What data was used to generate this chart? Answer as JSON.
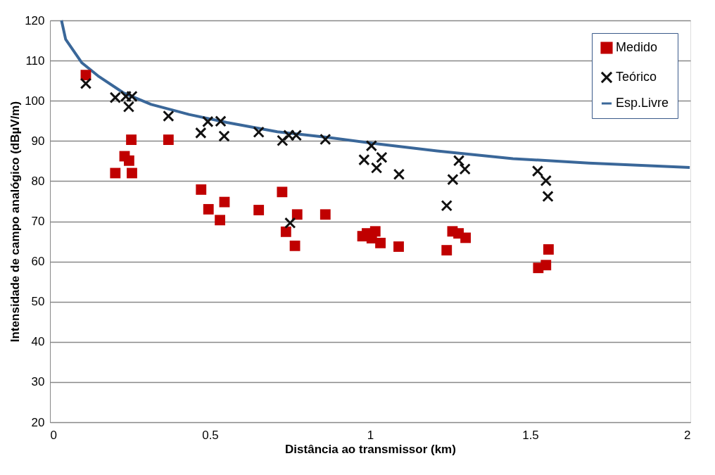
{
  "chart_data": {
    "type": "scatter",
    "xlabel": "Distância ao transmissor (km)",
    "ylabel": "Intensidade de campo analógico (dBµV/m)",
    "xlim": [
      0,
      2
    ],
    "xticks": [
      0,
      0.5,
      1,
      1.5,
      2
    ],
    "ylim": [
      20,
      120
    ],
    "yticks": [
      20,
      30,
      40,
      50,
      60,
      70,
      80,
      90,
      100,
      110,
      120
    ],
    "grid": "y",
    "legend": "top right",
    "series": [
      {
        "name": "Medido",
        "color": "#c00000",
        "marker": "square",
        "x": [
          0.112,
          0.254,
          0.233,
          0.247,
          0.204,
          0.256,
          0.37,
          0.472,
          0.495,
          0.545,
          0.531,
          0.652,
          0.725,
          0.772,
          0.737,
          0.765,
          0.86,
          0.976,
          0.99,
          1.005,
          1.016,
          1.032,
          1.089,
          1.239,
          1.257,
          1.276,
          1.298,
          1.557,
          1.549,
          1.525
        ],
        "values": [
          106.4,
          90.3,
          86.2,
          85.1,
          82,
          82,
          90.3,
          77.9,
          73,
          74.8,
          70.3,
          72.8,
          77.3,
          71.7,
          67.4,
          63.9,
          71.7,
          66.3,
          67,
          65.8,
          67.5,
          64.6,
          63.7,
          62.8,
          67.5,
          67,
          65.9,
          63,
          59.1,
          58.4
        ]
      },
      {
        "name": "Teórico",
        "color": "#111111",
        "marker": "cross",
        "x": [
          0.112,
          0.204,
          0.237,
          0.256,
          0.246,
          0.37,
          0.471,
          0.493,
          0.533,
          0.544,
          0.652,
          0.726,
          0.746,
          0.769,
          0.86,
          0.75,
          1.004,
          0.981,
          1.036,
          1.02,
          1.09,
          1.239,
          1.258,
          1.277,
          1.296,
          1.523,
          1.549,
          1.555
        ],
        "values": [
          104.3,
          100.8,
          101.1,
          101.1,
          98.5,
          96.2,
          92,
          94.8,
          94.9,
          91.2,
          92.2,
          90.1,
          91.4,
          91.4,
          90.4,
          69.6,
          88.8,
          85.3,
          85.9,
          83.3,
          81.7,
          73.9,
          80.4,
          85.1,
          83,
          82.5,
          80.1,
          76.2
        ]
      },
      {
        "name": "Esp.Livre",
        "color": "#3a6799",
        "type": "line",
        "marker": "none",
        "line_style": "solid",
        "x": [
          0.036,
          0.049,
          0.099,
          0.15,
          0.229,
          0.316,
          0.434,
          0.552,
          0.71,
          0.868,
          1.01,
          1.209,
          1.446,
          1.683,
          1.998
        ],
        "values": [
          120,
          115.3,
          109.5,
          106.2,
          102,
          99.1,
          96.6,
          94.6,
          92.3,
          90.9,
          89.4,
          87.5,
          85.6,
          84.5,
          83.4
        ]
      }
    ]
  }
}
